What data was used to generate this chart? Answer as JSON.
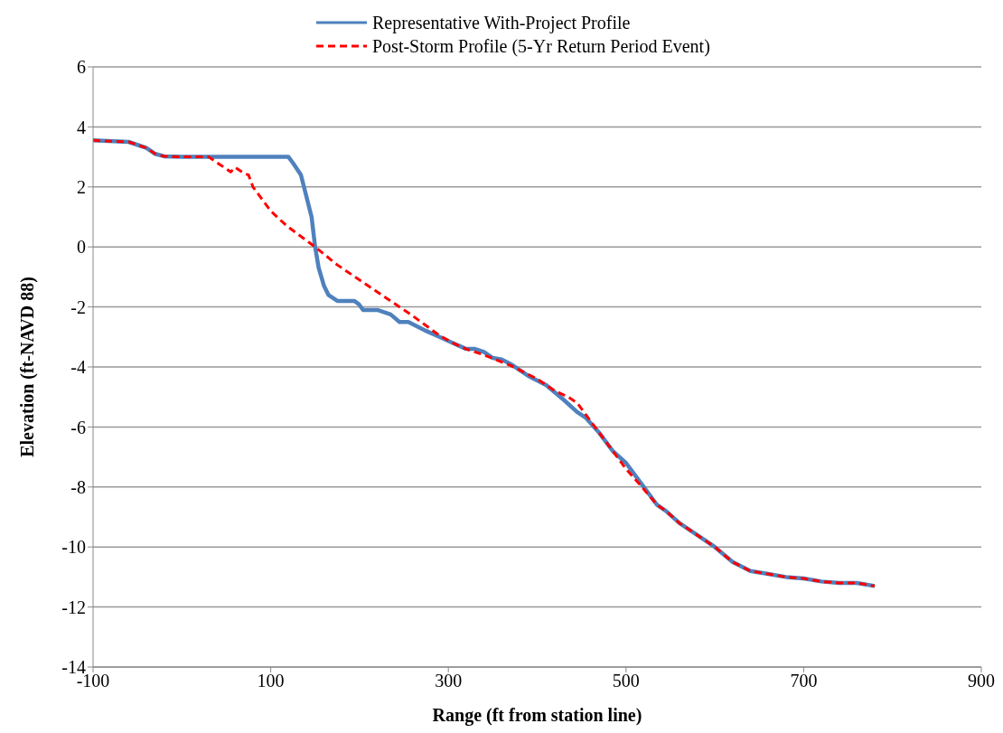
{
  "chart_data": {
    "type": "line",
    "xlabel": "Range (ft from station line)",
    "ylabel": "Elevation (ft-NAVD 88)",
    "xlim": [
      -100,
      900
    ],
    "xticks": [
      -100,
      100,
      300,
      500,
      700,
      900
    ],
    "ylim": [
      -14,
      6
    ],
    "yticks": [
      -14,
      -12,
      -10,
      -8,
      -6,
      -4,
      -2,
      0,
      2,
      4,
      6
    ],
    "grid": "y",
    "legend": "top",
    "marker": "none",
    "series": [
      {
        "name": "Representative With-Project Profile",
        "color": "#4f81bd",
        "line_style": "solid",
        "x": [
          -100,
          -60,
          -40,
          -30,
          -20,
          0,
          120,
          125,
          134,
          146,
          150,
          154,
          160,
          165,
          175,
          194,
          199,
          204,
          220,
          235,
          245,
          255,
          275,
          290,
          305,
          320,
          330,
          340,
          350,
          360,
          370,
          390,
          410,
          430,
          445,
          455,
          470,
          485,
          500,
          515,
          535,
          545,
          560,
          580,
          600,
          620,
          640,
          660,
          680,
          700,
          720,
          740,
          760,
          780
        ],
        "values": [
          3.55,
          3.5,
          3.3,
          3.1,
          3.02,
          3,
          3,
          2.8,
          2.4,
          1.0,
          0,
          -0.7,
          -1.3,
          -1.6,
          -1.8,
          -1.8,
          -1.9,
          -2.1,
          -2.1,
          -2.25,
          -2.5,
          -2.5,
          -2.8,
          -3.0,
          -3.2,
          -3.4,
          -3.4,
          -3.5,
          -3.7,
          -3.75,
          -3.9,
          -4.3,
          -4.6,
          -5.1,
          -5.5,
          -5.7,
          -6.2,
          -6.8,
          -7.2,
          -7.8,
          -8.6,
          -8.8,
          -9.2,
          -9.6,
          -10,
          -10.5,
          -10.8,
          -10.9,
          -11,
          -11.05,
          -11.15,
          -11.2,
          -11.2,
          -11.3
        ]
      },
      {
        "name": "Post-Storm Profile (5-Yr Return Period Event)",
        "color": "#ff0000",
        "line_style": "dashed",
        "x": [
          -100,
          -60,
          -40,
          -30,
          -20,
          0,
          30,
          45,
          55,
          60,
          70,
          75,
          80,
          100,
          118,
          150,
          175,
          200,
          230,
          260,
          290,
          305,
          320,
          340,
          370,
          400,
          420,
          435,
          445,
          460,
          475,
          490,
          500,
          515,
          535,
          545,
          560,
          580,
          600,
          620,
          640,
          660,
          680,
          700,
          720,
          740,
          760,
          780
        ],
        "values": [
          3.55,
          3.5,
          3.3,
          3.1,
          3.02,
          3,
          3,
          2.7,
          2.5,
          2.65,
          2.45,
          2.4,
          2.0,
          1.2,
          0.7,
          0,
          -0.6,
          -1.1,
          -1.7,
          -2.3,
          -2.95,
          -3.2,
          -3.4,
          -3.6,
          -3.95,
          -4.4,
          -4.8,
          -5.0,
          -5.2,
          -5.8,
          -6.4,
          -7.0,
          -7.4,
          -7.9,
          -8.6,
          -8.8,
          -9.2,
          -9.6,
          -10,
          -10.5,
          -10.8,
          -10.9,
          -11,
          -11.05,
          -11.15,
          -11.2,
          -11.2,
          -11.3
        ]
      }
    ]
  }
}
